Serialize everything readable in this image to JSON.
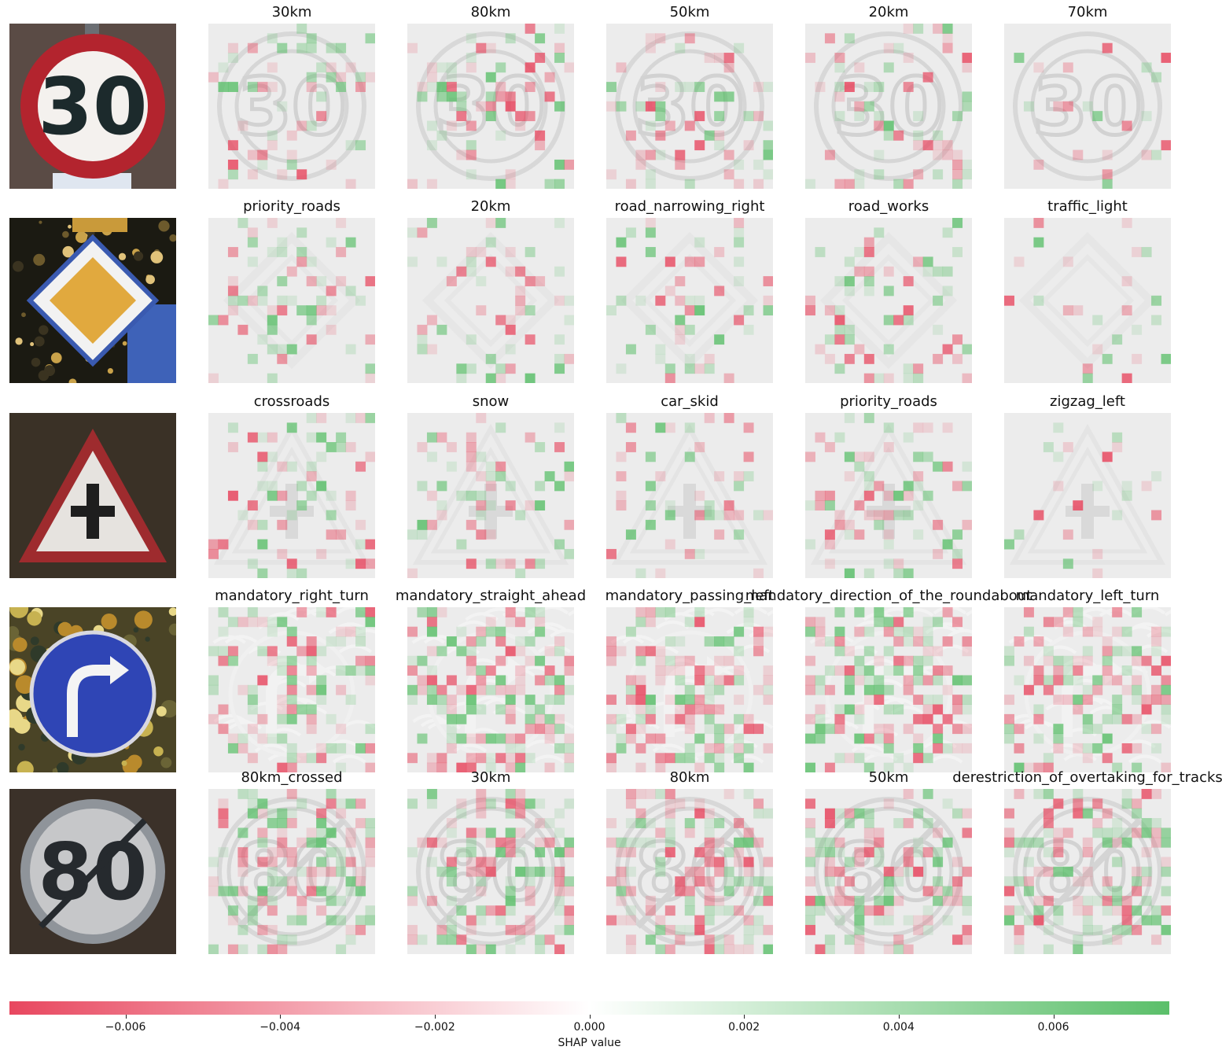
{
  "chart_data": {
    "type": "heatmap",
    "rows": [
      {
        "input_sign": "speed-limit-30",
        "classes": [
          "30km",
          "80km",
          "50km",
          "20km",
          "70km"
        ]
      },
      {
        "input_sign": "priority-road",
        "classes": [
          "priority_roads",
          "20km",
          "road_narrowing_right",
          "road_works",
          "traffic_light"
        ]
      },
      {
        "input_sign": "crossroads-warning",
        "classes": [
          "crossroads",
          "snow",
          "car_skid",
          "priority_roads",
          "zigzag_left"
        ]
      },
      {
        "input_sign": "mandatory-right-turn",
        "classes": [
          "mandatory_right_turn",
          "mandatory_straight_ahead",
          "mandatory_passing_left",
          "mandatory_direction_of_the_roundabout",
          "mandatory_left_turn"
        ]
      },
      {
        "input_sign": "end-speed-limit-80",
        "classes": [
          "80km_crossed",
          "30km",
          "80km",
          "50km",
          "derestriction_of_overtaking_for_tracks"
        ]
      }
    ],
    "colorbar": {
      "label": "SHAP value",
      "range": [
        -0.0075,
        0.0075
      ],
      "ticks": [
        -0.006,
        -0.004,
        -0.002,
        0.0,
        0.002,
        0.004,
        0.006
      ],
      "tick_labels": [
        "−0.006",
        "−0.004",
        "−0.002",
        "0.000",
        "0.002",
        "0.004",
        "0.006"
      ],
      "negative_color": "#e8475f",
      "positive_color": "#5bbf6a"
    }
  }
}
